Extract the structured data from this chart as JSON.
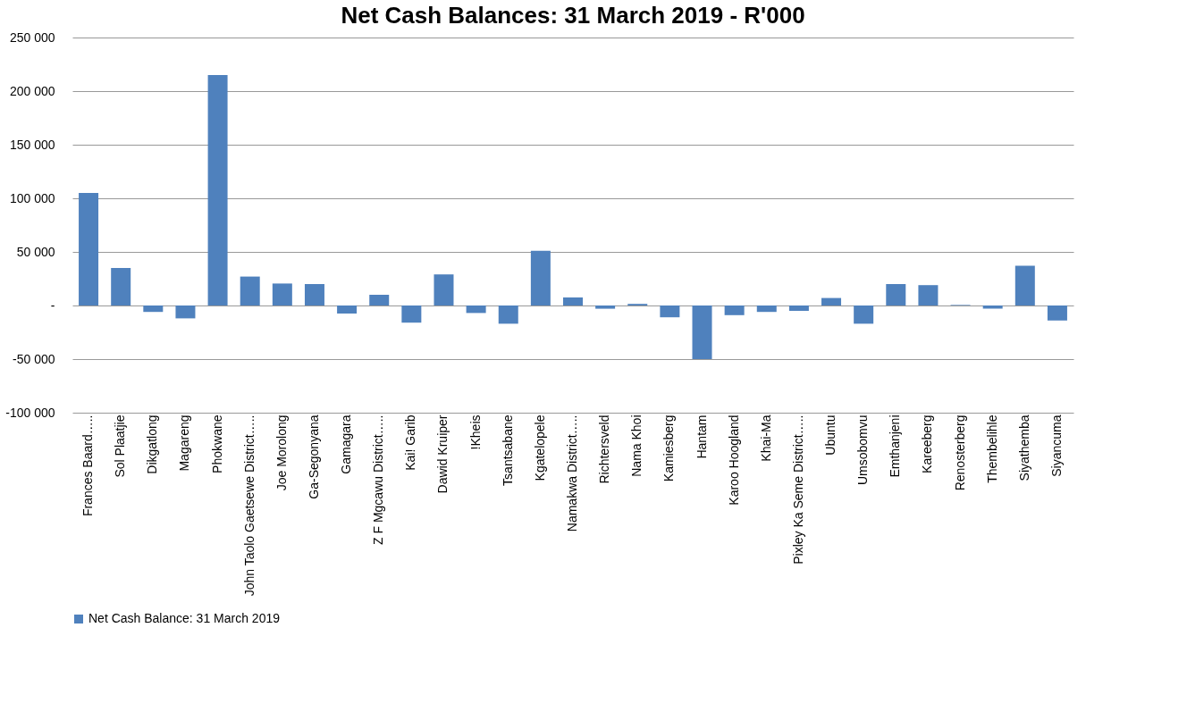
{
  "chart_data": {
    "type": "bar",
    "title": "Net Cash Balances: 31 March 2019 - R'000",
    "categories": [
      "Frances Baard…..",
      "Sol Plaatjie",
      "Dikgatlong",
      "Magareng",
      "Phokwane",
      "John Taolo Gaetsewe District…..",
      "Joe Morolong",
      "Ga-Segonyana",
      "Gamagara",
      "Z F Mgcawu District…..",
      "Kai! Garib",
      "Dawid Kruiper",
      "!Kheis",
      "Tsantsabane",
      "Kgatelopele",
      "Namakwa District…..",
      "Richtersveld",
      "Nama Khoi",
      "Kamiesberg",
      "Hantam",
      "Karoo Hoogland",
      "Khai-Ma",
      "Pixley Ka Seme District…..",
      "Ubuntu",
      "Umsobomvu",
      "Emthanjeni",
      "Kareeberg",
      "Renosterberg",
      "Thembelihle",
      "Siyathemba",
      "Siyancuma"
    ],
    "series": [
      {
        "name": "Net Cash Balance: 31 March  2019",
        "color": "#4f81bd",
        "values": [
          105000,
          35000,
          -6000,
          -12000,
          215000,
          27000,
          20500,
          20000,
          -7500,
          10000,
          -16000,
          29000,
          -7000,
          -17000,
          51000,
          7500,
          -3000,
          1500,
          -11000,
          -50000,
          -9000,
          -6000,
          -5000,
          7000,
          -17000,
          20000,
          19000,
          500,
          -3000,
          37000,
          -14000
        ]
      }
    ],
    "ylim": [
      -100000,
      250000
    ],
    "yticks": [
      {
        "value": -100000,
        "label": "-100 000"
      },
      {
        "value": -50000,
        "label": "-50 000"
      },
      {
        "value": 0,
        "label": "-"
      },
      {
        "value": 50000,
        "label": "50 000"
      },
      {
        "value": 100000,
        "label": "100 000"
      },
      {
        "value": 150000,
        "label": "150 000"
      },
      {
        "value": 200000,
        "label": "200 000"
      },
      {
        "value": 250000,
        "label": "250 000"
      }
    ],
    "grid": "y",
    "legend": "bottom"
  }
}
